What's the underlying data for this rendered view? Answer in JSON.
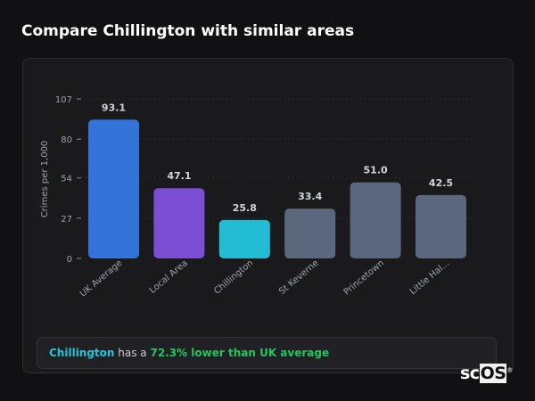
{
  "title": "Compare Chillington with similar areas",
  "chart_data": {
    "type": "bar",
    "categories": [
      "UK Average",
      "Local Area",
      "Chillington",
      "St Keverne",
      "Princetown",
      "Little Hal..."
    ],
    "values": [
      93.1,
      47.1,
      25.8,
      33.4,
      51.0,
      42.5
    ],
    "data_labels": [
      "93.1",
      "47.1",
      "25.8",
      "33.4",
      "51.0",
      "42.5"
    ],
    "colors": [
      "#3474d8",
      "#7b4fd3",
      "#22bcd4",
      "#5b677d",
      "#5b677d",
      "#5b677d"
    ],
    "ylabel": "Crimes per 1,000",
    "xlabel": "",
    "ylim": [
      0,
      107
    ],
    "yticks": [
      0,
      27,
      54,
      80,
      107
    ],
    "ytick_labels": [
      "0",
      "27",
      "54",
      "80",
      "107"
    ],
    "grid": true
  },
  "summary": {
    "area": "Chillington",
    "middle": " has a ",
    "comparison": "72.3% lower than UK average"
  },
  "logo": {
    "text_a": "sc",
    "text_b": "OS",
    "mark": "®"
  }
}
